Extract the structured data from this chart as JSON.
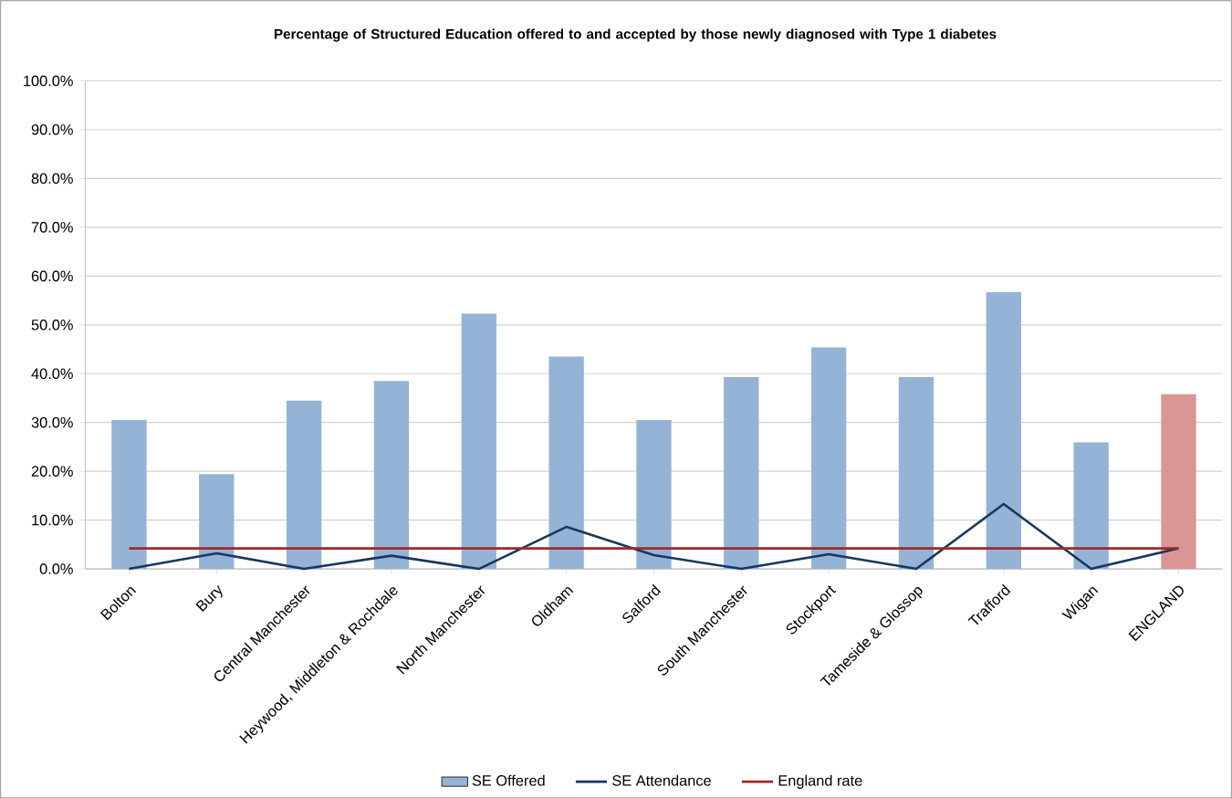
{
  "chart_data": {
    "type": "bar",
    "title": "Percentage of Structured Education offered to and accepted by those newly diagnosed with Type 1 diabetes",
    "categories": [
      "Bolton",
      "Bury",
      "Central Manchester",
      "Heywood, Middleton & Rochdale",
      "North Manchester",
      "Oldham",
      "Salford",
      "South Manchester",
      "Stockport",
      "Tameside & Glossop",
      "Trafford",
      "Wigan",
      "ENGLAND"
    ],
    "series": [
      {
        "name": "SE Offered",
        "color": "#95b3d7",
        "colors": [
          "#95b3d7",
          "#95b3d7",
          "#95b3d7",
          "#95b3d7",
          "#95b3d7",
          "#95b3d7",
          "#95b3d7",
          "#95b3d7",
          "#95b3d7",
          "#95b3d7",
          "#95b3d7",
          "#95b3d7",
          "#d99694"
        ],
        "values": [
          30.5,
          19.4,
          34.5,
          38.5,
          52.3,
          43.5,
          30.5,
          39.3,
          45.4,
          39.3,
          56.7,
          25.9,
          35.8
        ]
      },
      {
        "name": "SE Attendance",
        "type": "line",
        "color": "#17375e",
        "values": [
          0,
          3.2,
          0,
          2.7,
          0,
          8.6,
          2.8,
          0,
          3.0,
          0,
          13.3,
          0,
          4.2
        ]
      },
      {
        "name": "England rate",
        "type": "line",
        "color": "#a0282a",
        "values": [
          4.2,
          4.2,
          4.2,
          4.2,
          4.2,
          4.2,
          4.2,
          4.2,
          4.2,
          4.2,
          4.2,
          4.2,
          4.2
        ]
      }
    ],
    "ylim": [
      0,
      100
    ],
    "yticks": [
      {
        "value": 0,
        "label": "0.0%"
      },
      {
        "value": 10,
        "label": "10.0%"
      },
      {
        "value": 20,
        "label": "20.0%"
      },
      {
        "value": 30,
        "label": "30.0%"
      },
      {
        "value": 40,
        "label": "40.0%"
      },
      {
        "value": 50,
        "label": "50.0%"
      },
      {
        "value": 60,
        "label": "60.0%"
      },
      {
        "value": 70,
        "label": "70.0%"
      },
      {
        "value": 80,
        "label": "80.0%"
      },
      {
        "value": 90,
        "label": "90.0%"
      },
      {
        "value": 100,
        "label": "100.0%"
      }
    ],
    "grid": "y",
    "legend": "bottom",
    "marker": "none",
    "line_style": "solid"
  }
}
